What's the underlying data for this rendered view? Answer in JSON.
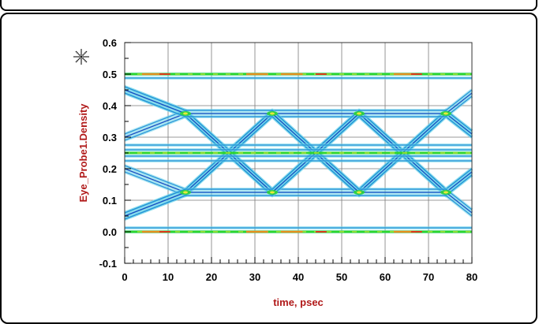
{
  "chart_data": {
    "type": "line",
    "title": "",
    "xlabel": "time, psec",
    "ylabel": "Eye_Probe1.Density",
    "xlim": [
      0,
      80
    ],
    "ylim": [
      -0.1,
      0.6
    ],
    "x_ticks": [
      "0",
      "10",
      "20",
      "30",
      "40",
      "50",
      "60",
      "70",
      "80"
    ],
    "y_ticks": [
      "-0.1",
      "0.0",
      "0.1",
      "0.2",
      "0.3",
      "0.4",
      "0.5",
      "0.6"
    ],
    "grid": true,
    "legend": "none",
    "levels": [
      0.0,
      0.25,
      0.5
    ],
    "crossing_times": [
      14,
      34,
      54,
      74
    ],
    "series": [
      {
        "x": [
          0,
          14,
          34,
          54,
          74,
          80
        ],
        "y": [
          0.45,
          0.375,
          0.125,
          0.375,
          0.125,
          0.19
        ]
      },
      {
        "x": [
          0,
          14,
          34,
          54,
          74,
          80
        ],
        "y": [
          0.05,
          0.125,
          0.375,
          0.125,
          0.375,
          0.31
        ]
      },
      {
        "x": [
          0,
          14,
          34,
          54,
          74,
          80
        ],
        "y": [
          0.2,
          0.125,
          0.375,
          0.375,
          0.125,
          0.19
        ]
      },
      {
        "x": [
          0,
          14,
          34,
          54,
          74,
          80
        ],
        "y": [
          0.3,
          0.375,
          0.125,
          0.125,
          0.375,
          0.31
        ]
      },
      {
        "x": [
          0,
          14,
          34,
          54,
          74,
          80
        ],
        "y": [
          0.45,
          0.375,
          0.375,
          0.125,
          0.125,
          0.06
        ]
      },
      {
        "x": [
          0,
          14,
          34,
          54,
          74,
          80
        ],
        "y": [
          0.05,
          0.125,
          0.125,
          0.375,
          0.375,
          0.44
        ]
      }
    ],
    "colors": {
      "trace_core": "#1a2fb8",
      "trace_mid": "#1e8ed6",
      "trace_outer": "#6fd6ea",
      "level_green": "#2fd62f",
      "level_yellow": "#e8e83a",
      "hot_orange": "#e8901e",
      "hot_red": "#e03a1a",
      "axis_title": "#b11a1a",
      "grid": "#7a7a7a"
    }
  },
  "icons": {
    "marker": "sparkle-icon"
  }
}
